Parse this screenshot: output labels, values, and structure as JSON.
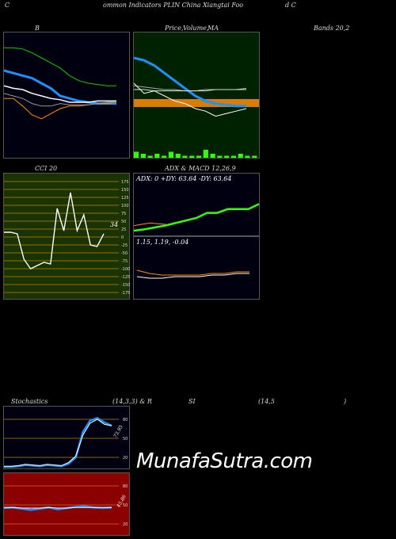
{
  "header": {
    "left": "C",
    "center": "ommon Indicators PLIN China Xiangtai Foo",
    "right": "d C"
  },
  "panels": {
    "bollinger": {
      "label": "B"
    },
    "price": {
      "label_a": "Price,",
      "label_b": "Volume,",
      "label_c": "MA"
    },
    "bands": {
      "label": "Bands 20,2"
    },
    "cci": {
      "label": "CCI 20",
      "value_label": "34"
    },
    "adx": {
      "label": "ADX  & MACD 12,26,9",
      "readout": "ADX: 0  +DY: 63.64  -DY: 63.64"
    },
    "macd": {
      "readout": "1.15,  1.19,  -0.04"
    },
    "stoch": {
      "label_a": "Stochastics",
      "label_b": "(14,3,3) & R",
      "label_c": "SI",
      "label_d": "(14,5",
      "label_e": ")",
      "value_label": "73.95"
    },
    "rsi": {
      "value_label": "45.86"
    }
  },
  "watermark": "MunafaSutra.com",
  "colors": {
    "bg_dark": "#000010",
    "price_bg": "#002200",
    "cci_bg": "#1a3300",
    "rsi_bg": "#8b0000",
    "blue": "#1e90ff",
    "green": "#33ff00",
    "orange": "#ff8c00"
  },
  "chart_data": [
    {
      "type": "line",
      "title": "B",
      "series": [
        {
          "values": [
            88,
            88,
            87,
            84,
            80,
            76,
            72,
            66,
            62,
            60,
            59,
            58,
            58
          ]
        },
        {
          "values": [
            70,
            68,
            66,
            64,
            60,
            56,
            50,
            48,
            46,
            45,
            44,
            44,
            44
          ]
        },
        {
          "values": [
            58,
            56,
            55,
            52,
            50,
            48,
            47,
            45,
            45,
            45,
            46,
            46,
            46
          ]
        },
        {
          "values": [
            48,
            48,
            42,
            35,
            32,
            36,
            40,
            42,
            42,
            43,
            44,
            44,
            45
          ]
        },
        {
          "values": [
            52,
            50,
            48,
            44,
            42,
            42,
            44,
            43,
            43,
            43,
            44,
            45,
            45
          ]
        }
      ]
    },
    {
      "type": "line",
      "title": "Price, Volume, MA",
      "series": [
        {
          "values": [
            80,
            78,
            74,
            68,
            62,
            56,
            50,
            46,
            44,
            43,
            42,
            42
          ]
        },
        {
          "values": [
            58,
            57,
            56,
            55,
            55,
            54,
            54,
            55,
            55,
            55,
            55,
            56
          ]
        },
        {
          "values": [
            55,
            55,
            54,
            54,
            54,
            54,
            54,
            54,
            55,
            55,
            55,
            55
          ]
        },
        {
          "values": [
            60,
            52,
            54,
            50,
            46,
            44,
            40,
            38,
            34,
            36,
            38,
            40
          ]
        }
      ],
      "volume": [
        3,
        2,
        1,
        2,
        1,
        3,
        2,
        1,
        1,
        1,
        4,
        2,
        1,
        1,
        1,
        2,
        1,
        1
      ]
    },
    {
      "type": "line",
      "title": "CCI 20",
      "y_ticks": [
        175,
        150,
        125,
        100,
        75,
        50,
        25,
        0,
        -25,
        -50,
        -75,
        -100,
        -125,
        -150,
        -175
      ],
      "ylim": [
        -175,
        175
      ],
      "values": [
        15,
        15,
        10,
        -70,
        -100,
        -90,
        -80,
        -85,
        90,
        20,
        140,
        20,
        70,
        -25,
        -30,
        10
      ]
    },
    {
      "type": "line",
      "title": "ADX & MACD 12,26,9",
      "series": [
        {
          "values": [
            10,
            12,
            15,
            18,
            22,
            26,
            30,
            38,
            38,
            44,
            44,
            44,
            52
          ]
        },
        {
          "values": [
            18,
            22,
            20
          ]
        }
      ]
    },
    {
      "type": "line",
      "title": "MACD",
      "series": [
        {
          "values": [
            1.15,
            1.14,
            1.14,
            1.15,
            1.15,
            1.15,
            1.16,
            1.16,
            1.17,
            1.17
          ]
        },
        {
          "values": [
            1.19,
            1.17,
            1.16,
            1.16,
            1.16,
            1.16,
            1.17,
            1.17,
            1.18,
            1.18
          ]
        }
      ]
    },
    {
      "type": "line",
      "title": "Stochastics (14,3,3)",
      "y_ticks": [
        80,
        50,
        20
      ],
      "ylim": [
        0,
        100
      ],
      "series": [
        {
          "values": [
            5,
            5,
            6,
            8,
            7,
            6,
            8,
            7,
            6,
            10,
            20,
            60,
            78,
            82,
            75,
            70
          ]
        },
        {
          "values": [
            6,
            6,
            7,
            9,
            8,
            7,
            9,
            8,
            7,
            12,
            22,
            55,
            74,
            80,
            72,
            70
          ]
        }
      ]
    },
    {
      "type": "line",
      "title": "RSI (14)",
      "y_ticks": [
        80,
        50,
        20
      ],
      "ylim": [
        0,
        100
      ],
      "series": [
        {
          "values": [
            45,
            46,
            44,
            42,
            44,
            46,
            43,
            45,
            47,
            48,
            46,
            45,
            46
          ]
        },
        {
          "values": [
            46,
            46,
            45,
            45,
            45,
            46,
            45,
            45,
            46,
            46,
            46,
            46,
            46
          ]
        }
      ]
    }
  ]
}
